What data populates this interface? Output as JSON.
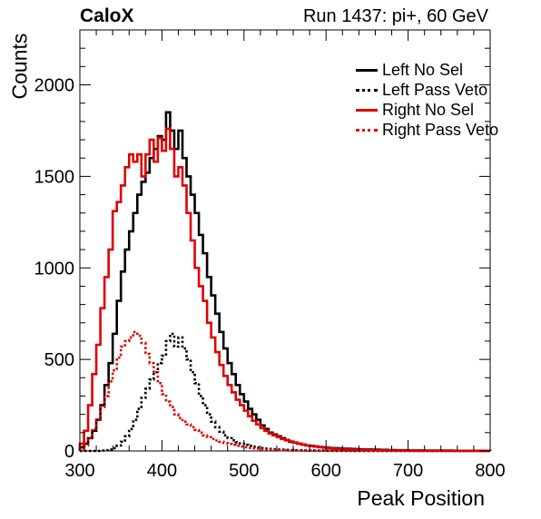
{
  "header": {
    "experiment": "CaloX",
    "run_info": "Run 1437: pi+, 60 GeV"
  },
  "chart_data": {
    "type": "histogram",
    "xlabel": "Peak Position",
    "ylabel": "Counts",
    "xlim": [
      300,
      800
    ],
    "ylim": [
      0,
      2300
    ],
    "x_ticks": [
      300,
      400,
      500,
      600,
      700,
      800
    ],
    "y_ticks": [
      0,
      500,
      1000,
      1500,
      2000
    ],
    "bin_width": 5,
    "grid": false,
    "legend_position": "top-right",
    "series": [
      {
        "name": "Left No Sel",
        "color": "#000000",
        "dashed": false,
        "x": [
          300,
          305,
          310,
          315,
          320,
          325,
          330,
          335,
          340,
          345,
          350,
          355,
          360,
          365,
          370,
          375,
          380,
          385,
          390,
          395,
          400,
          405,
          410,
          415,
          420,
          425,
          430,
          435,
          440,
          445,
          450,
          455,
          460,
          465,
          470,
          475,
          480,
          485,
          490,
          495,
          500,
          505,
          510,
          515,
          520,
          525,
          530,
          535,
          540,
          545,
          550,
          555,
          560,
          565,
          570,
          575,
          580,
          585,
          590,
          595,
          600,
          605,
          610,
          615,
          620,
          625,
          630,
          635,
          640,
          645,
          650,
          655,
          660,
          665,
          670,
          675,
          680,
          685,
          690,
          695,
          700,
          705,
          710,
          715,
          720,
          725,
          730,
          735,
          740,
          745,
          750,
          755,
          760,
          765,
          770,
          775,
          780,
          785,
          790,
          795
        ],
        "values": [
          20,
          40,
          70,
          110,
          170,
          250,
          360,
          480,
          640,
          820,
          980,
          1100,
          1200,
          1300,
          1400,
          1470,
          1520,
          1600,
          1650,
          1720,
          1700,
          1850,
          1750,
          1650,
          1750,
          1600,
          1500,
          1400,
          1300,
          1180,
          1080,
          950,
          850,
          750,
          650,
          560,
          480,
          420,
          360,
          310,
          270,
          230,
          200,
          170,
          140,
          120,
          100,
          90,
          80,
          70,
          60,
          50,
          45,
          40,
          35,
          30,
          28,
          25,
          22,
          20,
          18,
          16,
          15,
          14,
          13,
          12,
          11,
          10,
          9,
          8,
          8,
          7,
          7,
          6,
          6,
          5,
          5,
          4,
          4,
          4,
          3,
          3,
          3,
          3,
          2,
          2,
          2,
          2,
          2,
          2,
          2,
          1,
          1,
          1,
          1,
          1,
          1,
          1,
          1,
          1
        ]
      },
      {
        "name": "Left Pass Veto",
        "color": "#000000",
        "dashed": true,
        "x": [
          300,
          305,
          310,
          315,
          320,
          325,
          330,
          335,
          340,
          345,
          350,
          355,
          360,
          365,
          370,
          375,
          380,
          385,
          390,
          395,
          400,
          405,
          410,
          415,
          420,
          425,
          430,
          435,
          440,
          445,
          450,
          455,
          460,
          465,
          470,
          475,
          480,
          485,
          490,
          495,
          500,
          505,
          510,
          515,
          520,
          525,
          530,
          535,
          540,
          545,
          550,
          555,
          560,
          565,
          570,
          575,
          580,
          585,
          590,
          595,
          600,
          605,
          610,
          615,
          620,
          625,
          630,
          635,
          640,
          645,
          650,
          655,
          660,
          665,
          670,
          675,
          680,
          685,
          690,
          695,
          700,
          705,
          710,
          715,
          720,
          725,
          730,
          735,
          740,
          745,
          750,
          755,
          760,
          765,
          770,
          775,
          780,
          785,
          790,
          795
        ],
        "values": [
          0,
          0,
          0,
          0,
          0,
          2,
          4,
          8,
          15,
          30,
          50,
          80,
          120,
          170,
          230,
          290,
          340,
          390,
          430,
          480,
          520,
          600,
          640,
          570,
          620,
          560,
          500,
          430,
          370,
          300,
          250,
          200,
          160,
          130,
          105,
          85,
          70,
          58,
          48,
          40,
          33,
          28,
          23,
          19,
          16,
          13,
          11,
          9,
          8,
          7,
          6,
          5,
          4,
          4,
          3,
          3,
          2,
          2,
          2,
          2,
          1,
          1,
          1,
          1,
          1,
          1,
          1,
          0,
          0,
          0,
          0,
          0,
          0,
          0,
          0,
          0,
          0,
          0,
          0,
          0,
          0,
          0,
          0,
          0,
          0,
          0,
          0,
          0,
          0,
          0,
          0,
          0,
          0,
          0,
          0,
          0,
          0,
          0,
          0,
          0
        ]
      },
      {
        "name": "Right No Sel",
        "color": "#e00000",
        "dashed": false,
        "x": [
          300,
          305,
          310,
          315,
          320,
          325,
          330,
          335,
          340,
          345,
          350,
          355,
          360,
          365,
          370,
          375,
          380,
          385,
          390,
          395,
          400,
          405,
          410,
          415,
          420,
          425,
          430,
          435,
          440,
          445,
          450,
          455,
          460,
          465,
          470,
          475,
          480,
          485,
          490,
          495,
          500,
          505,
          510,
          515,
          520,
          525,
          530,
          535,
          540,
          545,
          550,
          555,
          560,
          565,
          570,
          575,
          580,
          585,
          590,
          595,
          600,
          605,
          610,
          615,
          620,
          625,
          630,
          635,
          640,
          645,
          650,
          655,
          660,
          665,
          670,
          675,
          680,
          685,
          690,
          695,
          700,
          705,
          710,
          715,
          720,
          725,
          730,
          735,
          740,
          745,
          750,
          755,
          760,
          765,
          770,
          775,
          780,
          785,
          790,
          795
        ],
        "values": [
          40,
          110,
          250,
          420,
          580,
          780,
          950,
          1100,
          1310,
          1360,
          1450,
          1550,
          1620,
          1580,
          1620,
          1500,
          1620,
          1700,
          1580,
          1710,
          1640,
          1760,
          1650,
          1500,
          1550,
          1450,
          1300,
          1150,
          1000,
          900,
          820,
          700,
          620,
          540,
          470,
          410,
          360,
          320,
          280,
          250,
          220,
          190,
          165,
          145,
          125,
          110,
          95,
          85,
          75,
          65,
          58,
          52,
          46,
          40,
          35,
          31,
          27,
          24,
          21,
          18,
          16,
          14,
          12,
          11,
          10,
          9,
          8,
          7,
          6,
          5,
          5,
          4,
          4,
          3,
          3,
          3,
          2,
          2,
          2,
          2,
          2,
          1,
          1,
          1,
          1,
          1,
          1,
          1,
          1,
          1,
          1,
          1,
          1,
          1,
          1,
          1,
          1,
          1,
          1,
          1
        ]
      },
      {
        "name": "Right Pass Veto",
        "color": "#e00000",
        "dashed": true,
        "x": [
          300,
          305,
          310,
          315,
          320,
          325,
          330,
          335,
          340,
          345,
          350,
          355,
          360,
          365,
          370,
          375,
          380,
          385,
          390,
          395,
          400,
          405,
          410,
          415,
          420,
          425,
          430,
          435,
          440,
          445,
          450,
          455,
          460,
          465,
          470,
          475,
          480,
          485,
          490,
          495,
          500,
          505,
          510,
          515,
          520,
          525,
          530,
          535,
          540,
          545,
          550,
          555,
          560,
          565,
          570,
          575,
          580,
          585,
          590,
          595,
          600,
          605,
          610,
          615,
          620,
          625,
          630,
          635,
          640,
          645,
          650,
          655,
          660,
          665,
          670,
          675,
          680,
          685,
          690,
          695,
          700,
          705,
          710,
          715,
          720,
          725,
          730,
          735,
          740,
          745,
          750,
          755,
          760,
          765,
          770,
          775,
          780,
          785,
          790,
          795
        ],
        "values": [
          10,
          30,
          70,
          120,
          170,
          240,
          300,
          380,
          440,
          510,
          570,
          600,
          620,
          650,
          630,
          590,
          530,
          480,
          430,
          370,
          310,
          270,
          240,
          200,
          180,
          160,
          145,
          130,
          115,
          100,
          85,
          75,
          65,
          57,
          50,
          44,
          38,
          33,
          28,
          24,
          20,
          17,
          14,
          12,
          10,
          8,
          7,
          6,
          5,
          4,
          3,
          3,
          2,
          2,
          2,
          1,
          1,
          1,
          1,
          1,
          1,
          1,
          0,
          0,
          0,
          0,
          0,
          0,
          0,
          0,
          0,
          0,
          0,
          0,
          0,
          0,
          0,
          0,
          0,
          0,
          0,
          0,
          0,
          0,
          0,
          0,
          0,
          0,
          0,
          0,
          0,
          0,
          0,
          0,
          0,
          0,
          0,
          0,
          0,
          0
        ]
      }
    ]
  }
}
